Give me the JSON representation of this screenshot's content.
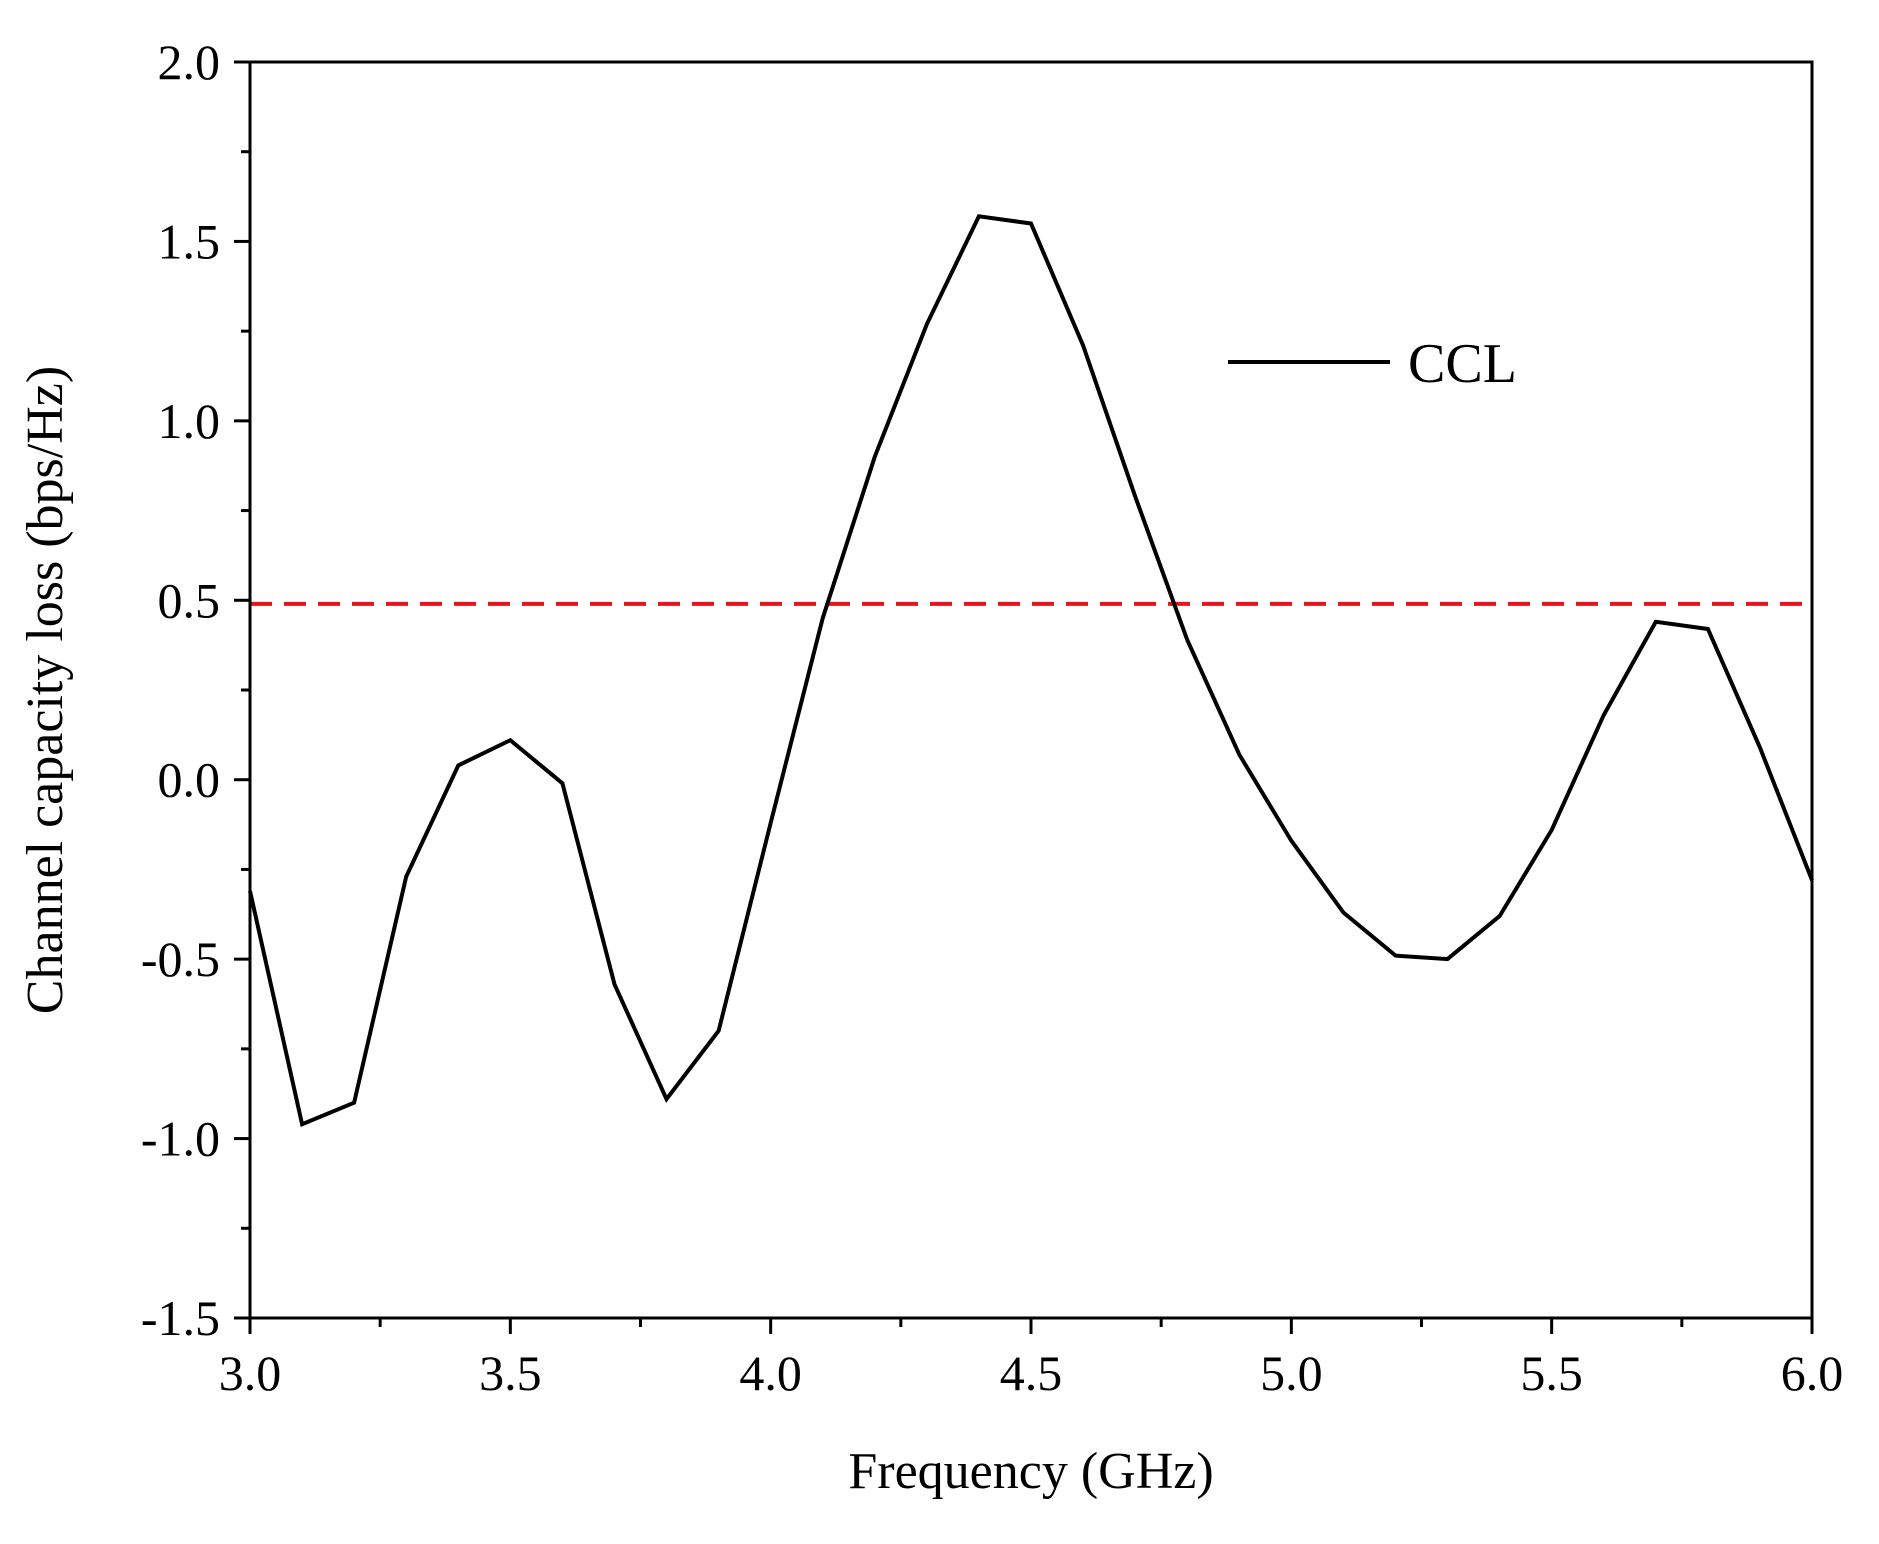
{
  "chart_data": {
    "type": "line",
    "title": "",
    "xlabel": "Frequency (GHz)",
    "ylabel": "Channel capacity loss (bps/Hz)",
    "xlim": [
      3.0,
      6.0
    ],
    "ylim": [
      -1.5,
      2.0
    ],
    "x_ticks": [
      "3.0",
      "3.5",
      "4.0",
      "4.5",
      "5.0",
      "5.5",
      "6.0"
    ],
    "y_ticks": [
      "-1.5",
      "-1.0",
      "-0.5",
      "0.0",
      "0.5",
      "1.0",
      "1.5",
      "2.0"
    ],
    "grid": false,
    "legend_position": "top-right",
    "series": [
      {
        "name": "CCL",
        "color": "#000000",
        "x": [
          3.0,
          3.1,
          3.2,
          3.3,
          3.4,
          3.5,
          3.6,
          3.7,
          3.8,
          3.9,
          4.0,
          4.1,
          4.2,
          4.3,
          4.4,
          4.5,
          4.6,
          4.7,
          4.8,
          4.9,
          5.0,
          5.1,
          5.2,
          5.3,
          5.4,
          5.5,
          5.6,
          5.7,
          5.8,
          5.9,
          6.0
        ],
        "values": [
          -0.31,
          -0.96,
          -0.9,
          -0.27,
          0.04,
          0.11,
          -0.01,
          -0.57,
          -0.89,
          -0.7,
          -0.12,
          0.45,
          0.9,
          1.27,
          1.57,
          1.55,
          1.21,
          0.79,
          0.39,
          0.07,
          -0.17,
          -0.37,
          -0.49,
          -0.5,
          -0.38,
          -0.14,
          0.18,
          0.44,
          0.42,
          0.09,
          -0.28
        ]
      }
    ],
    "reference_line": {
      "y": 0.49,
      "color": "#e8141c",
      "style": "dashed"
    }
  }
}
